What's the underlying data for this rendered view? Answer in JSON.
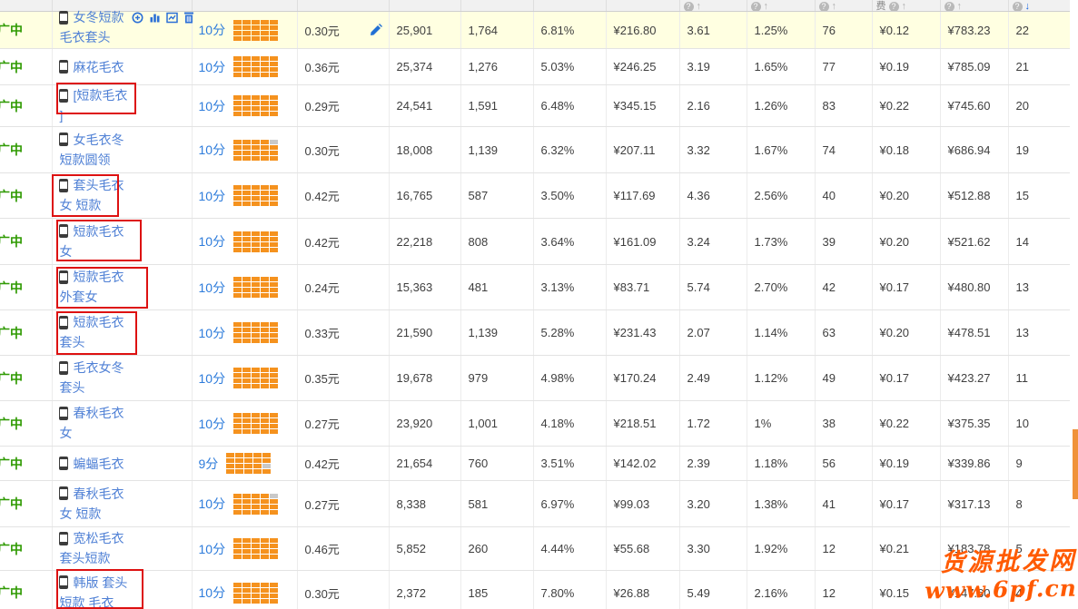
{
  "table": {
    "header": {
      "cells": [
        {},
        {},
        {},
        {},
        {},
        {},
        {},
        {},
        {
          "has_help": true,
          "arrow": "up"
        },
        {
          "has_help": true,
          "arrow": "up"
        },
        {
          "has_help": true,
          "arrow": "up"
        },
        {
          "label": "费",
          "has_help": true,
          "arrow": "up"
        },
        {
          "has_help": true,
          "arrow": "up"
        },
        {
          "has_help": true,
          "arrow": "down",
          "sorted": true
        }
      ]
    },
    "rows": [
      {
        "status": "推广中",
        "keyword": {
          "line1": "女冬短款",
          "line2": "毛衣套头"
        },
        "has_action_icons": true,
        "score": "10分",
        "bars": {
          "total": 20,
          "gray": []
        },
        "price": "0.30元",
        "has_pencil": true,
        "highlighted": true,
        "red_box": false,
        "values": [
          "25,901",
          "1,764",
          "6.81%",
          "¥216.80",
          "3.61",
          "1.25%",
          "76",
          "¥0.12",
          "¥783.23",
          "22"
        ]
      },
      {
        "status": "推广中",
        "keyword": {
          "line1": "麻花毛衣",
          "line2": ""
        },
        "has_action_icons": false,
        "score": "10分",
        "bars": {
          "total": 20,
          "gray": []
        },
        "price": "0.36元",
        "has_pencil": false,
        "highlighted": false,
        "red_box": false,
        "values": [
          "25,374",
          "1,276",
          "5.03%",
          "¥246.25",
          "3.19",
          "1.65%",
          "77",
          "¥0.19",
          "¥785.09",
          "21"
        ]
      },
      {
        "status": "推广中",
        "keyword": {
          "line1": "[短款毛衣",
          "line2": "]"
        },
        "has_action_icons": false,
        "score": "10分",
        "bars": {
          "total": 20,
          "gray": []
        },
        "price": "0.29元",
        "has_pencil": false,
        "highlighted": false,
        "red_box": true,
        "values": [
          "24,541",
          "1,591",
          "6.48%",
          "¥345.15",
          "2.16",
          "1.26%",
          "83",
          "¥0.22",
          "¥745.60",
          "20"
        ]
      },
      {
        "status": "推广中",
        "keyword": {
          "line1": "女毛衣冬",
          "line2": "短款圆领"
        },
        "has_action_icons": false,
        "score": "10分",
        "bars": {
          "total": 20,
          "gray": [
            4
          ]
        },
        "price": "0.30元",
        "has_pencil": false,
        "highlighted": false,
        "red_box": false,
        "values": [
          "18,008",
          "1,139",
          "6.32%",
          "¥207.11",
          "3.32",
          "1.67%",
          "74",
          "¥0.18",
          "¥686.94",
          "19"
        ]
      },
      {
        "status": "推广中",
        "keyword": {
          "line1": "套头毛衣",
          "line2": "女 短款"
        },
        "has_action_icons": false,
        "score": "10分",
        "bars": {
          "total": 20,
          "gray": []
        },
        "price": "0.42元",
        "has_pencil": false,
        "highlighted": false,
        "red_box": true,
        "values": [
          "16,765",
          "587",
          "3.50%",
          "¥117.69",
          "4.36",
          "2.56%",
          "40",
          "¥0.20",
          "¥512.88",
          "15"
        ]
      },
      {
        "status": "推广中",
        "keyword": {
          "line1": "短款毛衣",
          "line2": "女"
        },
        "has_action_icons": false,
        "score": "10分",
        "bars": {
          "total": 20,
          "gray": []
        },
        "price": "0.42元",
        "has_pencil": false,
        "highlighted": false,
        "red_box": true,
        "values": [
          "22,218",
          "808",
          "3.64%",
          "¥161.09",
          "3.24",
          "1.73%",
          "39",
          "¥0.20",
          "¥521.62",
          "14"
        ]
      },
      {
        "status": "推广中",
        "keyword": {
          "line1": "短款毛衣",
          "line2": "外套女"
        },
        "has_action_icons": false,
        "score": "10分",
        "bars": {
          "total": 20,
          "gray": []
        },
        "price": "0.24元",
        "has_pencil": false,
        "highlighted": false,
        "red_box": true,
        "values": [
          "15,363",
          "481",
          "3.13%",
          "¥83.71",
          "5.74",
          "2.70%",
          "42",
          "¥0.17",
          "¥480.80",
          "13"
        ]
      },
      {
        "status": "推广中",
        "keyword": {
          "line1": "短款毛衣",
          "line2": "套头"
        },
        "has_action_icons": false,
        "score": "10分",
        "bars": {
          "total": 20,
          "gray": []
        },
        "price": "0.33元",
        "has_pencil": false,
        "highlighted": false,
        "red_box": true,
        "values": [
          "21,590",
          "1,139",
          "5.28%",
          "¥231.43",
          "2.07",
          "1.14%",
          "63",
          "¥0.20",
          "¥478.51",
          "13"
        ]
      },
      {
        "status": "推广中",
        "keyword": {
          "line1": "毛衣女冬",
          "line2": "套头"
        },
        "has_action_icons": false,
        "score": "10分",
        "bars": {
          "total": 20,
          "gray": []
        },
        "price": "0.35元",
        "has_pencil": false,
        "highlighted": false,
        "red_box": false,
        "values": [
          "19,678",
          "979",
          "4.98%",
          "¥170.24",
          "2.49",
          "1.12%",
          "49",
          "¥0.17",
          "¥423.27",
          "11"
        ]
      },
      {
        "status": "推广中",
        "keyword": {
          "line1": "春秋毛衣",
          "line2": "女"
        },
        "has_action_icons": false,
        "score": "10分",
        "bars": {
          "total": 20,
          "gray": []
        },
        "price": "0.27元",
        "has_pencil": false,
        "highlighted": false,
        "red_box": false,
        "values": [
          "23,920",
          "1,001",
          "4.18%",
          "¥218.51",
          "1.72",
          "1%",
          "38",
          "¥0.22",
          "¥375.35",
          "10"
        ]
      },
      {
        "status": "推广中",
        "keyword": {
          "line1": "蝙蝠毛衣",
          "line2": ""
        },
        "has_action_icons": false,
        "score": "9分",
        "bars": {
          "total": 20,
          "gray": [
            14
          ]
        },
        "price": "0.42元",
        "has_pencil": false,
        "highlighted": false,
        "red_box": false,
        "values": [
          "21,654",
          "760",
          "3.51%",
          "¥142.02",
          "2.39",
          "1.18%",
          "56",
          "¥0.19",
          "¥339.86",
          "9"
        ]
      },
      {
        "status": "推广中",
        "keyword": {
          "line1": "春秋毛衣",
          "line2": "女 短款"
        },
        "has_action_icons": false,
        "score": "10分",
        "bars": {
          "total": 20,
          "gray": [
            4
          ]
        },
        "price": "0.27元",
        "has_pencil": false,
        "highlighted": false,
        "red_box": false,
        "values": [
          "8,338",
          "581",
          "6.97%",
          "¥99.03",
          "3.20",
          "1.38%",
          "41",
          "¥0.17",
          "¥317.13",
          "8"
        ]
      },
      {
        "status": "推广中",
        "keyword": {
          "line1": "宽松毛衣",
          "line2": "套头短款"
        },
        "has_action_icons": false,
        "score": "10分",
        "bars": {
          "total": 20,
          "gray": []
        },
        "price": "0.46元",
        "has_pencil": false,
        "highlighted": false,
        "red_box": false,
        "values": [
          "5,852",
          "260",
          "4.44%",
          "¥55.68",
          "3.30",
          "1.92%",
          "12",
          "¥0.21",
          "¥183.78",
          "5"
        ]
      },
      {
        "status": "推广中",
        "keyword": {
          "line1": "韩版 套头",
          "line2": "短款 毛衣"
        },
        "has_action_icons": false,
        "score": "10分",
        "bars": {
          "total": 20,
          "gray": []
        },
        "price": "0.30元",
        "has_pencil": false,
        "highlighted": false,
        "red_box": true,
        "values": [
          "2,372",
          "185",
          "7.80%",
          "¥26.88",
          "5.49",
          "2.16%",
          "12",
          "¥0.15",
          "¥147.60",
          "4"
        ]
      }
    ]
  },
  "watermark": {
    "line1": "货源批发网",
    "line2": "www.6pf.cn"
  },
  "colors": {
    "link_blue": "#4f80d5",
    "score_blue": "#2e7cdb",
    "status_green": "#2f9a02",
    "bar_orange": "#f5921e",
    "bar_gray": "#c9c9c9",
    "highlight_yellow": "#ffffe1",
    "annotation_red": "#dd1111",
    "watermark_orange": "#ff5a00",
    "scrollbar_orange": "#f0923a"
  }
}
